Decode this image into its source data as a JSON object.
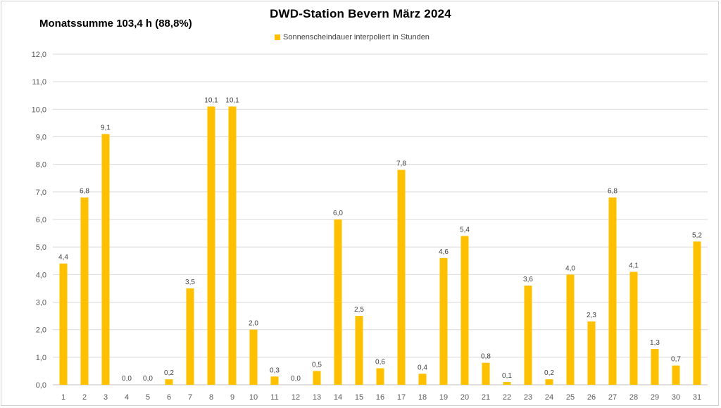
{
  "chart_data": {
    "type": "bar",
    "title": "DWD-Station  Bevern März 2024",
    "annotation": "Monatssumme 103,4 h (88,8%)",
    "series": [
      {
        "name": "Sonnenscheindauer interpoliert in Stunden",
        "color": "#FFC000",
        "values": [
          4.4,
          6.8,
          9.1,
          0.0,
          0.0,
          0.2,
          3.5,
          10.1,
          10.1,
          2.0,
          0.3,
          0.0,
          0.5,
          6.0,
          2.5,
          0.6,
          7.8,
          0.4,
          4.6,
          5.4,
          0.8,
          0.1,
          3.6,
          0.2,
          4.0,
          2.3,
          6.8,
          4.1,
          1.3,
          0.7,
          5.2
        ],
        "data_labels": [
          "4,4",
          "6,8",
          "9,1",
          "0,0",
          "0,0",
          "0,2",
          "3,5",
          "10,1",
          "10,1",
          "2,0",
          "0,3",
          "0,0",
          "0,5",
          "6,0",
          "2,5",
          "0,6",
          "7,8",
          "0,4",
          "4,6",
          "5,4",
          "0,8",
          "0,1",
          "3,6",
          "0,2",
          "4,0",
          "2,3",
          "6,8",
          "4,1",
          "1,3",
          "0,7",
          "5,2"
        ]
      }
    ],
    "categories": [
      "1",
      "2",
      "3",
      "4",
      "5",
      "6",
      "7",
      "8",
      "9",
      "10",
      "11",
      "12",
      "13",
      "14",
      "15",
      "16",
      "17",
      "18",
      "19",
      "20",
      "21",
      "22",
      "23",
      "24",
      "25",
      "26",
      "27",
      "28",
      "29",
      "30",
      "31"
    ],
    "ylim": [
      0,
      12
    ],
    "yticks": [
      "0,0",
      "1,0",
      "2,0",
      "3,0",
      "4,0",
      "5,0",
      "6,0",
      "7,0",
      "8,0",
      "9,0",
      "10,0",
      "11,0",
      "12,0"
    ],
    "xlabel": "",
    "ylabel": "",
    "grid": true,
    "legend_position": "top"
  }
}
